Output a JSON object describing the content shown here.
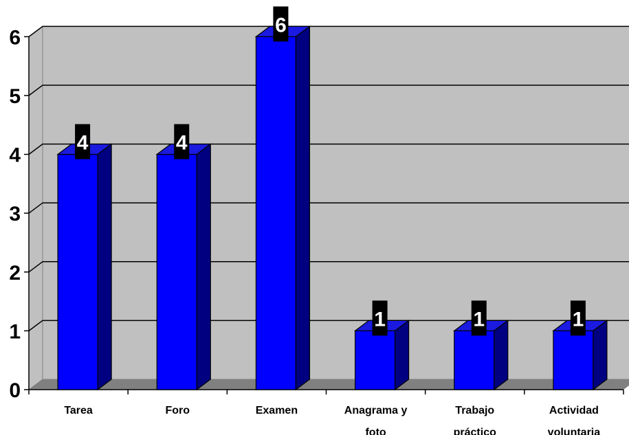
{
  "chart_data": {
    "type": "bar",
    "categories": [
      "Tarea",
      "Foro",
      "Examen",
      "Anagrama y foto",
      "Trabajo práctico",
      "Actividad voluntaria"
    ],
    "category_lines": [
      [
        "Tarea"
      ],
      [
        "Foro"
      ],
      [
        "Examen"
      ],
      [
        "Anagrama y",
        "foto"
      ],
      [
        "Trabajo",
        "práctico"
      ],
      [
        "Actividad",
        "voluntaria"
      ]
    ],
    "values": [
      4,
      4,
      6,
      1,
      1,
      1
    ],
    "yticks": [
      "0",
      "1",
      "2",
      "3",
      "4",
      "5",
      "6"
    ],
    "ylim": [
      0,
      6
    ],
    "title": "",
    "xlabel": "",
    "ylabel": "",
    "grid": true,
    "legend": "none",
    "style": "3d-column",
    "colors": {
      "bar_front": "#0000FF",
      "bar_top": "#1A1AE0",
      "bar_side": "#000080",
      "wall": "#C0C0C0",
      "floor": "#808080",
      "label_bg": "#000000",
      "label_text": "#FFFFFF"
    }
  }
}
